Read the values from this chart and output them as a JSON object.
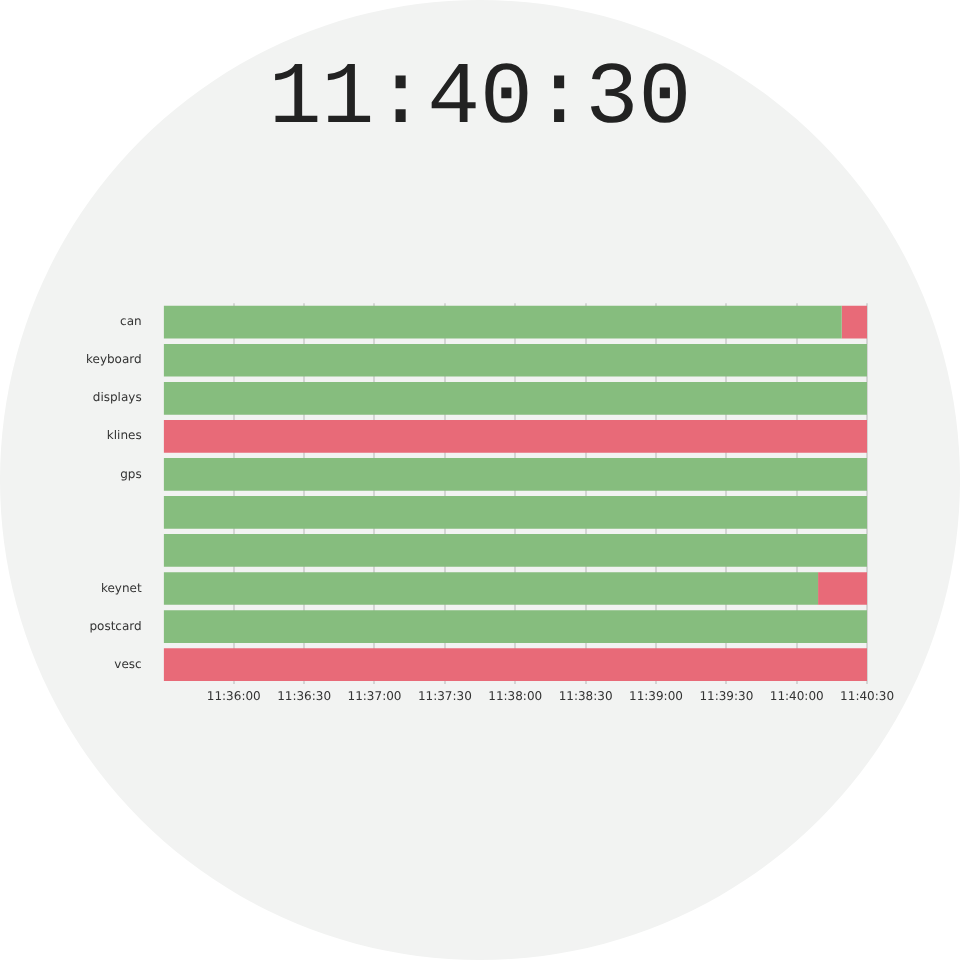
{
  "chart_data": {
    "type": "bar",
    "orientation": "horizontal",
    "title": "11:40:30",
    "categories": [
      "can",
      "keyboard",
      "displays",
      "klines",
      "gps",
      null,
      null,
      "keynet",
      "postcard",
      "vesc"
    ],
    "series": [
      {
        "color": "#86bd7e",
        "base": [
          11.5917,
          11.5917,
          11.5917,
          null,
          11.5917,
          11.5917,
          11.5917,
          11.5917,
          11.5917,
          null
        ],
        "values": [
          0.0803,
          0.0833,
          0.0833,
          null,
          0.0833,
          0.0833,
          0.0833,
          0.0775,
          0.0833,
          null
        ]
      },
      {
        "color": "#e86a78",
        "base": [
          11.672,
          null,
          null,
          11.5917,
          null,
          null,
          null,
          11.6692,
          null,
          11.5917
        ],
        "values": [
          0.003,
          null,
          null,
          0.0833,
          null,
          null,
          null,
          0.0058,
          null,
          0.0833
        ]
      }
    ],
    "xlim": [
      11.5917,
      11.675
    ],
    "xticks": [
      {
        "value": 11.6,
        "label": "11:36:00"
      },
      {
        "value": 11.608333,
        "label": "11:36:30"
      },
      {
        "value": 11.616667,
        "label": "11:37:00"
      },
      {
        "value": 11.625,
        "label": "11:37:30"
      },
      {
        "value": 11.633333,
        "label": "11:38:00"
      },
      {
        "value": 11.641667,
        "label": "11:38:30"
      },
      {
        "value": 11.65,
        "label": "11:39:00"
      },
      {
        "value": 11.658333,
        "label": "11:39:30"
      },
      {
        "value": 11.666667,
        "label": "11:40:00"
      },
      {
        "value": 11.675,
        "label": "11:40:30"
      }
    ],
    "grid": "x",
    "legend": false
  }
}
